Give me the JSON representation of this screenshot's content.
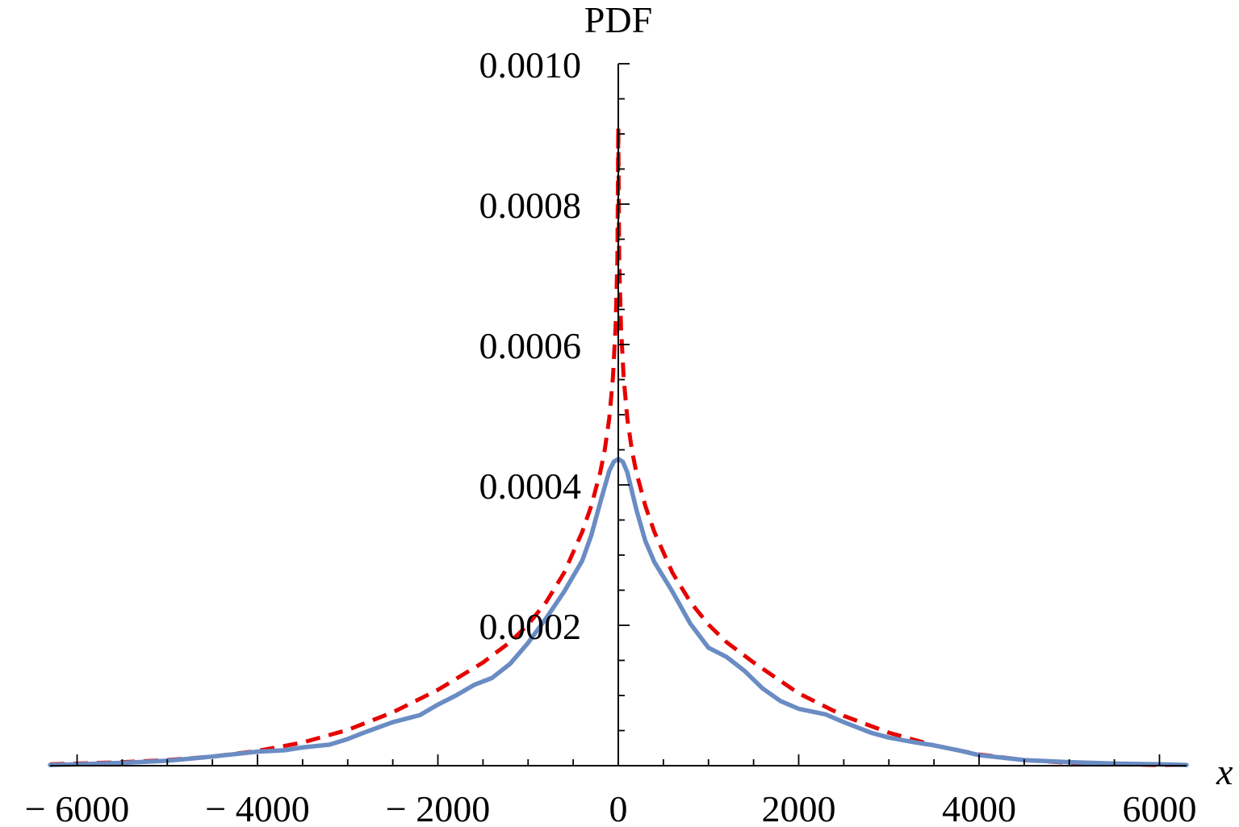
{
  "chart_data": {
    "type": "line",
    "title": "",
    "xlabel": "x",
    "ylabel": "PDF",
    "xlim": [
      -6300,
      6300
    ],
    "ylim": [
      0,
      0.001
    ],
    "x_ticks": [
      {
        "value": -6000,
        "label": "− 6000"
      },
      {
        "value": -4000,
        "label": "− 4000"
      },
      {
        "value": -2000,
        "label": "− 2000"
      },
      {
        "value": 0,
        "label": "0"
      },
      {
        "value": 2000,
        "label": "2000"
      },
      {
        "value": 4000,
        "label": "4000"
      },
      {
        "value": 6000,
        "label": "6000"
      }
    ],
    "x_minor_step": 500,
    "y_ticks": [
      {
        "value": 0.0002,
        "label": "0.0002"
      },
      {
        "value": 0.0004,
        "label": "0.0004"
      },
      {
        "value": 0.0006,
        "label": "0.0006"
      },
      {
        "value": 0.0008,
        "label": "0.0008"
      },
      {
        "value": 0.001,
        "label": "0.0010"
      }
    ],
    "y_minor_step": 5e-05,
    "grid": false,
    "series": [
      {
        "style": "dashed",
        "color": "#e60000",
        "x": [
          -6300,
          -6000,
          -5500,
          -5000,
          -4500,
          -4000,
          -3500,
          -3000,
          -2500,
          -2000,
          -1500,
          -1200,
          -1000,
          -800,
          -600,
          -400,
          -300,
          -200,
          -150,
          -100,
          -60,
          -30,
          -10,
          0,
          10,
          30,
          60,
          100,
          150,
          200,
          300,
          400,
          600,
          800,
          1000,
          1200,
          1500,
          2000,
          2500,
          3000,
          3500,
          4000,
          4500,
          5000,
          5500,
          6000,
          6300
        ],
        "y": [
          2e-06,
          3e-06,
          5e-06,
          8e-06,
          1.3e-05,
          2.1e-05,
          3.3e-05,
          5.1e-05,
          7.6e-05,
          0.000108,
          0.000147,
          0.000176,
          0.000201,
          0.000233,
          0.000275,
          0.000333,
          0.00037,
          0.000418,
          0.00045,
          0.000495,
          0.000552,
          0.000625,
          0.00072,
          0.00091,
          0.00072,
          0.000625,
          0.000552,
          0.000495,
          0.00045,
          0.000418,
          0.00037,
          0.000333,
          0.000275,
          0.000233,
          0.000201,
          0.000176,
          0.000147,
          0.000103,
          7.1e-05,
          4.7e-05,
          2.9e-05,
          1.6e-05,
          8e-06,
          4e-06,
          2e-06,
          1e-06,
          1e-06
        ]
      },
      {
        "style": "solid",
        "color": "#6a8cc4",
        "x": [
          -6300,
          -6000,
          -5500,
          -5000,
          -4500,
          -4000,
          -3700,
          -3500,
          -3200,
          -3000,
          -2800,
          -2500,
          -2200,
          -2000,
          -1800,
          -1600,
          -1400,
          -1200,
          -1000,
          -800,
          -600,
          -400,
          -300,
          -200,
          -100,
          -50,
          0,
          50,
          100,
          200,
          300,
          400,
          600,
          800,
          1000,
          1200,
          1400,
          1600,
          1800,
          2000,
          2300,
          2500,
          2800,
          3000,
          3300,
          3500,
          3800,
          4000,
          4500,
          5000,
          5500,
          6000,
          6300
        ],
        "y": [
          1e-06,
          2e-06,
          4e-06,
          7e-06,
          1.3e-05,
          2e-05,
          2.2e-05,
          2.6e-05,
          3e-05,
          3.8e-05,
          4.8e-05,
          6.2e-05,
          7.2e-05,
          8.7e-05,
          0.0001,
          0.000115,
          0.000125,
          0.000145,
          0.000175,
          0.00021,
          0.000248,
          0.000292,
          0.000328,
          0.000375,
          0.00042,
          0.000433,
          0.000437,
          0.000433,
          0.000418,
          0.000365,
          0.00032,
          0.00029,
          0.000248,
          0.000202,
          0.000168,
          0.000155,
          0.000135,
          0.00011,
          9.2e-05,
          8.1e-05,
          7.3e-05,
          6.2e-05,
          4.7e-05,
          4e-05,
          3.3e-05,
          2.9e-05,
          2.1e-05,
          1.5e-05,
          8e-06,
          5e-06,
          3e-06,
          2e-06,
          1e-06
        ]
      }
    ]
  }
}
